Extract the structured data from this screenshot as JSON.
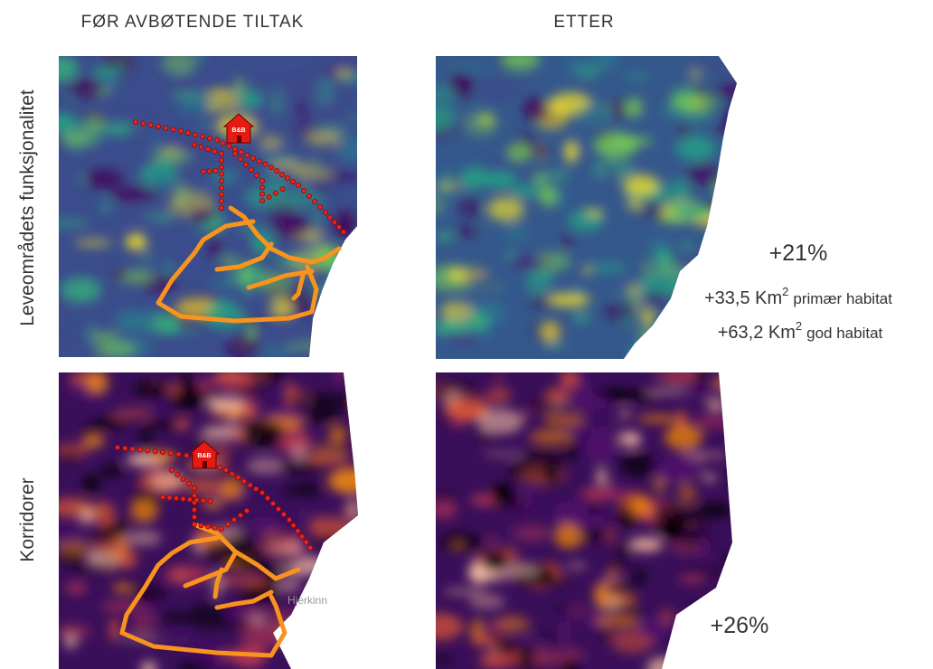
{
  "header": {
    "before": "FØR AVBØTENDE TILTAK",
    "after": "ETTER"
  },
  "rows": {
    "habitat": "Leveområdets funksjonalitet",
    "corridors": "Korridorer"
  },
  "stats": {
    "habitat_change": "+21%",
    "primary_habitat": {
      "value": "+33,5 Km",
      "sup": "2",
      "label": "primær habitat"
    },
    "good_habitat": {
      "value": "+63,2 Km",
      "sup": "2",
      "label": "god habitat"
    },
    "corridor_change": "+26%"
  },
  "map_labels": {
    "bnb_top": "B&B",
    "bnb_bottom": "B&B",
    "place": "Hjerkinn"
  }
}
